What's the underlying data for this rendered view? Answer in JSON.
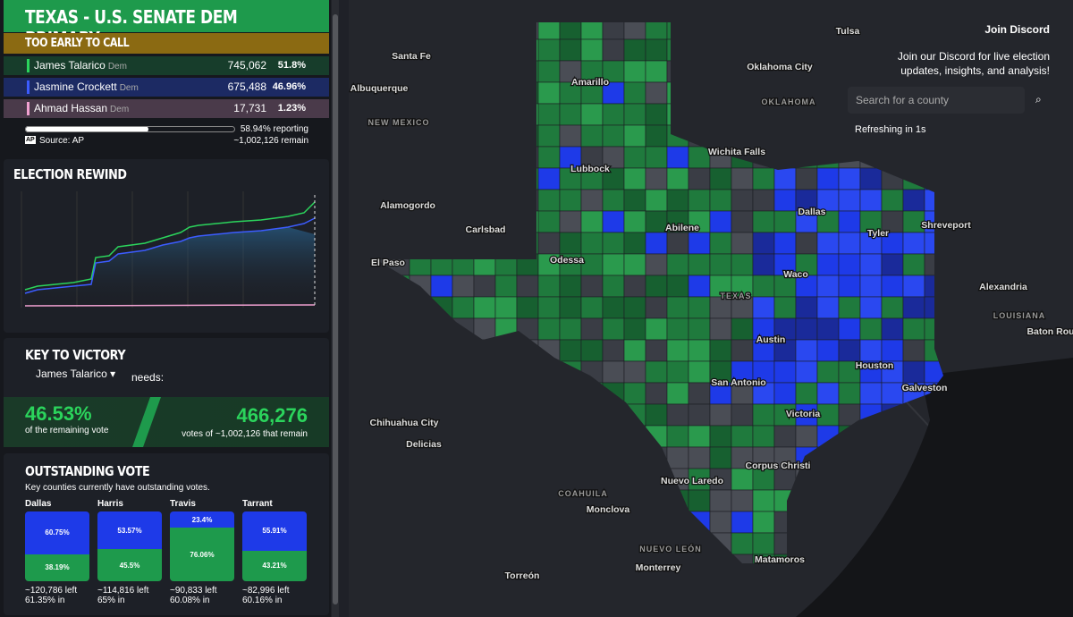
{
  "header": {
    "title": "TEXAS - U.S. SENATE DEM PRIMARY",
    "status": "TOO EARLY TO CALL"
  },
  "candidates": [
    {
      "name": "James Talarico",
      "party": "Dem",
      "votes": "745,062",
      "pct": "51.8%"
    },
    {
      "name": "Jasmine Crockett",
      "party": "Dem",
      "votes": "675,488",
      "pct": "46.96%"
    },
    {
      "name": "Ahmad Hassan",
      "party": "Dem",
      "votes": "17,731",
      "pct": "1.23%"
    }
  ],
  "reporting": {
    "pct": "58.94% reporting",
    "source": "Source: AP",
    "logo": "AP",
    "remain": "~1,002,126 remain"
  },
  "rewind": {
    "title": "ELECTION REWIND"
  },
  "key": {
    "title": "KEY TO VICTORY",
    "candidate": "James Talarico",
    "needs": "needs:",
    "pct": "46.53%",
    "pct_note": "of the remaining vote",
    "votes": "466,276",
    "votes_note": "votes of ~1,002,126 that remain"
  },
  "outstanding": {
    "title": "OUTSTANDING VOTE",
    "subtitle": "Key counties currently have outstanding votes.",
    "counties": [
      {
        "name": "Dallas",
        "green": {
          "value": 38.19,
          "label": "38.19%"
        },
        "blue": {
          "value": 60.75,
          "label": "60.75%"
        },
        "left": "~120,786 left",
        "in": "61.35% in"
      },
      {
        "name": "Harris",
        "green": {
          "value": 45.5,
          "label": "45.5%"
        },
        "blue": {
          "value": 53.57,
          "label": "53.57%"
        },
        "left": "~114,816 left",
        "in": "65% in"
      },
      {
        "name": "Travis",
        "green": {
          "value": 76.06,
          "label": "76.06%"
        },
        "blue": {
          "value": 23.4,
          "label": "23.4%"
        },
        "left": "~90,833 left",
        "in": "60.08% in"
      },
      {
        "name": "Tarrant",
        "green": {
          "value": 43.21,
          "label": "43.21%"
        },
        "blue": {
          "value": 55.91,
          "label": "55.91%"
        },
        "left": "~82,996 left",
        "in": "60.16% in"
      }
    ]
  },
  "discord": {
    "title": "Join Discord",
    "text": "Join our Discord for live election updates, insights, and analysis!",
    "search": "Search for a county",
    "refresh": "Refreshing in 1s"
  },
  "map": {
    "labels": [
      "Tulsa",
      "Santa Fe",
      "Oklahoma City",
      "Amarillo",
      "Albuquerque",
      "OKLAHOMA",
      "NEW MEXICO",
      "Lubbock",
      "Wichita Falls",
      "Dallas",
      "Alamogordo",
      "Shreveport",
      "Carlsbad",
      "Tyler",
      "Abilene",
      "El Paso",
      "Odessa",
      "Alexandria",
      "TEXAS",
      "Waco",
      "LOUISIANA",
      "Baton Rou",
      "Austin",
      "Houston",
      "San Antonio",
      "Galveston",
      "Chihuahua City",
      "Victoria",
      "Delicias",
      "Corpus Christi",
      "Nuevo Laredo",
      "COAHUILA",
      "Monclova",
      "NUEVO LEÓN",
      "Matamoros",
      "Monterrey",
      "Torreón"
    ]
  }
}
